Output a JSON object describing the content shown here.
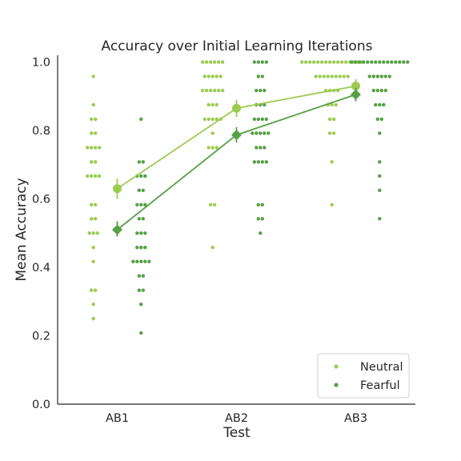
{
  "chart_data": {
    "type": "scatter",
    "title": "Accuracy over Initial Learning Iterations",
    "xlabel": "Test",
    "ylabel": "Mean Accuracy",
    "categories": [
      "AB1",
      "AB2",
      "AB3"
    ],
    "ylim": [
      0,
      1.02
    ],
    "yticks": [
      "0.0",
      "0.2",
      "0.4",
      "0.6",
      "0.8",
      "1.0"
    ],
    "grid": false,
    "legend_position": "bottom-right",
    "colors": {
      "Neutral": "#9dcb52",
      "Fearful": "#56a045"
    },
    "series": [
      {
        "name": "Neutral",
        "marker": "circle",
        "means": [
          0.63,
          0.865,
          0.93
        ],
        "ci": [
          [
            0.6,
            0.66
          ],
          [
            0.84,
            0.89
          ],
          [
            0.91,
            0.95
          ]
        ],
        "points": [
          [
            0.958,
            0.875,
            0.833,
            0.833,
            0.792,
            0.792,
            0.75,
            0.75,
            0.75,
            0.75,
            0.708,
            0.708,
            0.667,
            0.667,
            0.667,
            0.667,
            0.583,
            0.583,
            0.542,
            0.542,
            0.5,
            0.5,
            0.5,
            0.458,
            0.417,
            0.333,
            0.333,
            0.292,
            0.25
          ],
          [
            1.0,
            1.0,
            1.0,
            1.0,
            1.0,
            1.0,
            0.958,
            0.958,
            0.958,
            0.958,
            0.958,
            0.917,
            0.917,
            0.917,
            0.917,
            0.917,
            0.917,
            0.875,
            0.875,
            0.875,
            0.833,
            0.833,
            0.833,
            0.833,
            0.833,
            0.792,
            0.75,
            0.75,
            0.75,
            0.583,
            0.583,
            0.458
          ],
          [
            1.0,
            1.0,
            1.0,
            1.0,
            1.0,
            1.0,
            1.0,
            1.0,
            1.0,
            1.0,
            1.0,
            1.0,
            1.0,
            1.0,
            1.0,
            1.0,
            0.958,
            0.958,
            0.958,
            0.958,
            0.958,
            0.958,
            0.958,
            0.958,
            0.958,
            0.917,
            0.917,
            0.917,
            0.917,
            0.875,
            0.875,
            0.875,
            0.833,
            0.833,
            0.792,
            0.792,
            0.708,
            0.583
          ]
        ]
      },
      {
        "name": "Fearful",
        "marker": "diamond",
        "means": [
          0.51,
          0.787,
          0.905
        ],
        "ci": [
          [
            0.49,
            0.535
          ],
          [
            0.765,
            0.81
          ],
          [
            0.885,
            0.925
          ]
        ],
        "points": [
          [
            0.833,
            0.708,
            0.708,
            0.667,
            0.667,
            0.667,
            0.625,
            0.625,
            0.583,
            0.583,
            0.583,
            0.542,
            0.542,
            0.5,
            0.5,
            0.5,
            0.458,
            0.458,
            0.458,
            0.417,
            0.417,
            0.417,
            0.417,
            0.417,
            0.375,
            0.375,
            0.333,
            0.333,
            0.292,
            0.208
          ],
          [
            1.0,
            1.0,
            1.0,
            1.0,
            0.958,
            0.958,
            0.917,
            0.917,
            0.917,
            0.875,
            0.875,
            0.875,
            0.833,
            0.833,
            0.833,
            0.833,
            0.792,
            0.792,
            0.792,
            0.792,
            0.792,
            0.75,
            0.75,
            0.75,
            0.708,
            0.708,
            0.708,
            0.708,
            0.583,
            0.583,
            0.542,
            0.542,
            0.5
          ],
          [
            1.0,
            1.0,
            1.0,
            1.0,
            1.0,
            1.0,
            1.0,
            1.0,
            1.0,
            1.0,
            1.0,
            1.0,
            1.0,
            1.0,
            1.0,
            0.958,
            0.958,
            0.958,
            0.958,
            0.958,
            0.958,
            0.917,
            0.917,
            0.917,
            0.917,
            0.875,
            0.875,
            0.875,
            0.833,
            0.833,
            0.792,
            0.708,
            0.667,
            0.625,
            0.542
          ]
        ]
      }
    ]
  }
}
